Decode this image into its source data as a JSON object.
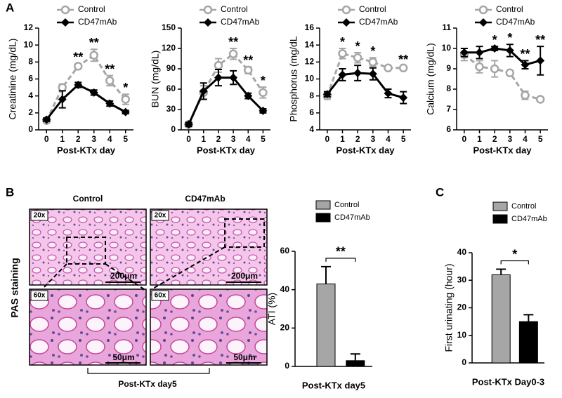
{
  "panels": [
    "A",
    "B",
    "C"
  ],
  "histology": {
    "columns": [
      "Control",
      "CD47mAb"
    ],
    "rows": [
      "20x",
      "60x"
    ],
    "scale_bars": [
      "200μm",
      "50μm"
    ],
    "stain": "PAS staining",
    "caption": "Post-KTx day5"
  },
  "chart_data": [
    {
      "type": "line",
      "y_label": "Creatinine (mg/dL)",
      "x_label": "Post-KTx day",
      "x": [
        0,
        1,
        2,
        3,
        4,
        5
      ],
      "xlim": [
        -0.5,
        5.5
      ],
      "xticks": [
        0,
        1,
        2,
        3,
        4,
        5
      ],
      "ylim": [
        0,
        12
      ],
      "yticks": [
        0,
        2,
        4,
        6,
        8,
        10,
        12
      ],
      "series": [
        {
          "name": "Control",
          "color": "#a6a6a6",
          "marker": "open-circle",
          "dashed": true,
          "values": [
            1.1,
            5.0,
            7.5,
            8.8,
            5.8,
            3.6
          ],
          "errors": [
            0.2,
            0.4,
            0.3,
            0.7,
            0.6,
            0.6
          ]
        },
        {
          "name": "CD47mAb",
          "color": "#000000",
          "marker": "diamond",
          "dashed": false,
          "values": [
            1.2,
            3.6,
            5.3,
            4.4,
            3.1,
            2.1
          ],
          "errors": [
            0.2,
            1.0,
            0.3,
            0.3,
            0.3,
            0.2
          ]
        }
      ],
      "annotations": [
        {
          "x": 2,
          "text": "**"
        },
        {
          "x": 3,
          "text": "**"
        },
        {
          "x": 4,
          "text": "**"
        },
        {
          "x": 5,
          "text": "*"
        }
      ]
    },
    {
      "type": "line",
      "y_label": "BUN (mg/dL)",
      "x_label": "Post-KTx day",
      "x": [
        0,
        1,
        2,
        3,
        4,
        5
      ],
      "xlim": [
        -0.5,
        5.5
      ],
      "xticks": [
        0,
        1,
        2,
        3,
        4,
        5
      ],
      "ylim": [
        0,
        150
      ],
      "yticks": [
        0,
        30,
        60,
        90,
        120,
        150
      ],
      "series": [
        {
          "name": "Control",
          "color": "#a6a6a6",
          "marker": "open-circle",
          "dashed": true,
          "values": [
            8,
            55,
            95,
            112,
            88,
            55
          ],
          "errors": [
            3,
            10,
            10,
            8,
            5,
            8
          ]
        },
        {
          "name": "CD47mAb",
          "color": "#000000",
          "marker": "diamond",
          "dashed": false,
          "values": [
            8,
            57,
            77,
            77,
            50,
            28
          ],
          "errors": [
            3,
            12,
            12,
            10,
            4,
            3
          ]
        }
      ],
      "annotations": [
        {
          "x": 3,
          "text": "**"
        },
        {
          "x": 4,
          "text": "**"
        },
        {
          "x": 5,
          "text": "*"
        }
      ]
    },
    {
      "type": "line",
      "y_label": "Phosphorus (mg/dL",
      "x_label": "Post-KTx day",
      "x": [
        0,
        1,
        2,
        3,
        4,
        5
      ],
      "xlim": [
        -0.5,
        5.5
      ],
      "xticks": [
        0,
        1,
        2,
        3,
        4,
        5
      ],
      "ylim": [
        4,
        16
      ],
      "yticks": [
        4,
        6,
        8,
        10,
        12,
        14,
        16
      ],
      "series": [
        {
          "name": "Control",
          "color": "#a6a6a6",
          "marker": "open-circle",
          "dashed": true,
          "values": [
            8.0,
            13.0,
            12.5,
            12.0,
            11.3,
            11.3
          ],
          "errors": [
            0.4,
            0.6,
            0.6,
            0.5,
            0.2,
            0.2
          ]
        },
        {
          "name": "CD47mAb",
          "color": "#000000",
          "marker": "diamond",
          "dashed": false,
          "values": [
            8.2,
            10.5,
            10.7,
            10.6,
            8.3,
            7.8
          ],
          "errors": [
            0.3,
            0.7,
            0.9,
            0.7,
            0.5,
            0.7
          ]
        }
      ],
      "annotations": [
        {
          "x": 1,
          "text": "*"
        },
        {
          "x": 2,
          "text": "*"
        },
        {
          "x": 3,
          "text": "*"
        },
        {
          "x": 5,
          "text": "**"
        }
      ]
    },
    {
      "type": "line",
      "y_label": "Calcium (mg/dL)",
      "x_label": "Post-KTx day",
      "x": [
        0,
        1,
        2,
        3,
        4,
        5
      ],
      "xlim": [
        -0.5,
        5.5
      ],
      "xticks": [
        0,
        1,
        2,
        3,
        4,
        5
      ],
      "ylim": [
        6,
        11
      ],
      "yticks": [
        6,
        7,
        8,
        9,
        10,
        11
      ],
      "series": [
        {
          "name": "Control",
          "color": "#a6a6a6",
          "marker": "open-circle",
          "dashed": true,
          "values": [
            9.7,
            9.1,
            9.0,
            8.8,
            7.7,
            7.5
          ],
          "errors": [
            0.3,
            0.3,
            0.4,
            0.1,
            0.2,
            0.1
          ]
        },
        {
          "name": "CD47mAb",
          "color": "#000000",
          "marker": "diamond",
          "dashed": false,
          "values": [
            9.8,
            9.8,
            10.0,
            9.9,
            9.2,
            9.4
          ],
          "errors": [
            0.2,
            0.3,
            0.1,
            0.3,
            0.2,
            0.7
          ]
        }
      ],
      "annotations": [
        {
          "x": 2,
          "text": "*"
        },
        {
          "x": 3,
          "text": "*"
        },
        {
          "x": 4,
          "text": "**"
        },
        {
          "x": 5,
          "text": "**"
        }
      ]
    },
    {
      "type": "bar",
      "y_label": "ATI (%)",
      "x_label": "Post-KTx day5",
      "ylim": [
        0,
        60
      ],
      "yticks": [
        0,
        20,
        40,
        60
      ],
      "series": [
        {
          "name": "Control",
          "color": "#a6a6a6",
          "values": [
            43
          ],
          "errors": [
            9
          ]
        },
        {
          "name": "CD47mAb",
          "color": "#000000",
          "values": [
            3
          ],
          "errors": [
            3.5
          ]
        }
      ],
      "annotations": [
        {
          "text": "**"
        }
      ]
    },
    {
      "type": "bar",
      "y_label": "First urinating (hour)",
      "x_label": "Post-KTx Day0-3",
      "ylim": [
        0,
        40
      ],
      "yticks": [
        0,
        10,
        20,
        30,
        40
      ],
      "series": [
        {
          "name": "Control",
          "color": "#a6a6a6",
          "values": [
            32
          ],
          "errors": [
            2
          ]
        },
        {
          "name": "CD47mAb",
          "color": "#000000",
          "values": [
            15
          ],
          "errors": [
            2.5
          ]
        }
      ],
      "annotations": [
        {
          "text": "*"
        }
      ]
    }
  ]
}
